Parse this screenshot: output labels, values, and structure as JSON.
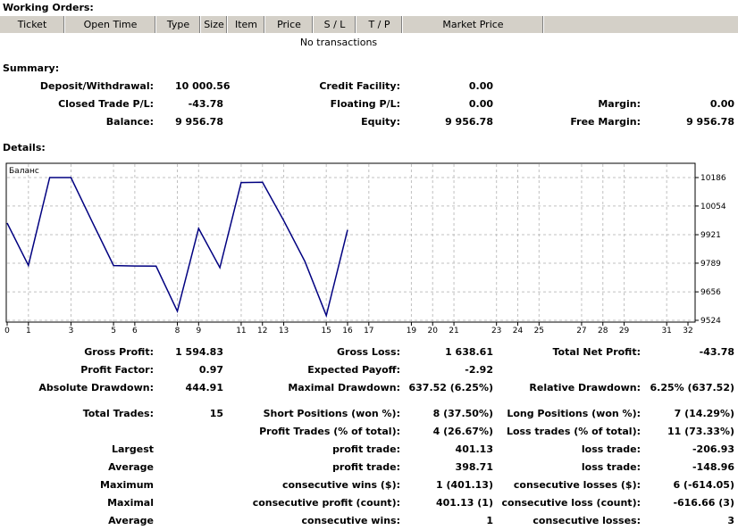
{
  "working_orders": {
    "title": "Working Orders:",
    "columns": [
      "Ticket",
      "Open Time",
      "Type",
      "Size",
      "Item",
      "Price",
      "S / L",
      "T / P",
      "Market Price"
    ],
    "empty_message": "No transactions"
  },
  "summary": {
    "title": "Summary:",
    "deposit_withdrawal_label": "Deposit/Withdrawal:",
    "deposit_withdrawal": "10 000.56",
    "credit_facility_label": "Credit Facility:",
    "credit_facility": "0.00",
    "closed_trade_pl_label": "Closed Trade P/L:",
    "closed_trade_pl": "-43.78",
    "floating_pl_label": "Floating P/L:",
    "floating_pl": "0.00",
    "margin_label": "Margin:",
    "margin": "0.00",
    "balance_label": "Balance:",
    "balance": "9 956.78",
    "equity_label": "Equity:",
    "equity": "9 956.78",
    "free_margin_label": "Free Margin:",
    "free_margin": "9 956.78"
  },
  "details": {
    "title": "Details:",
    "chart_data": {
      "type": "line",
      "title": "Баланс",
      "x": [
        0,
        1,
        2,
        3,
        4,
        5,
        6,
        7,
        8,
        9,
        10,
        11,
        12,
        13,
        14,
        15,
        16
      ],
      "series": [
        {
          "values": [
            9975,
            9779,
            10186,
            10186,
            9980,
            9778,
            9776,
            9775,
            9566,
            9950,
            9768,
            10163,
            10164,
            9986,
            9796,
            9546,
            9943
          ]
        }
      ],
      "xlim": [
        0,
        32
      ],
      "x_ticks": [
        0,
        1,
        3,
        5,
        6,
        8,
        9,
        11,
        12,
        13,
        15,
        16,
        17,
        19,
        20,
        21,
        23,
        24,
        25,
        27,
        28,
        29,
        31,
        32
      ],
      "ylim": [
        9524,
        10186
      ],
      "y_ticks": [
        10186,
        10054,
        9921,
        9789,
        9656,
        9524
      ],
      "grid": true,
      "line_color": "#000080"
    },
    "gross_profit_label": "Gross Profit:",
    "gross_profit": "1 594.83",
    "gross_loss_label": "Gross Loss:",
    "gross_loss": "1 638.61",
    "total_net_profit_label": "Total Net Profit:",
    "total_net_profit": "-43.78",
    "profit_factor_label": "Profit Factor:",
    "profit_factor": "0.97",
    "expected_payoff_label": "Expected Payoff:",
    "expected_payoff": "-2.92",
    "absolute_drawdown_label": "Absolute Drawdown:",
    "absolute_drawdown": "444.91",
    "maximal_drawdown_label": "Maximal Drawdown:",
    "maximal_drawdown": "637.52 (6.25%)",
    "relative_drawdown_label": "Relative Drawdown:",
    "relative_drawdown": "6.25% (637.52)",
    "total_trades_label": "Total Trades:",
    "total_trades": "15",
    "short_positions_label": "Short Positions (won %):",
    "short_positions": "8 (37.50%)",
    "long_positions_label": "Long Positions (won %):",
    "long_positions": "7 (14.29%)",
    "profit_trades_label": "Profit Trades (% of total):",
    "profit_trades": "4 (26.67%)",
    "loss_trades_label": "Loss trades (% of total):",
    "loss_trades": "11 (73.33%)",
    "largest_label": "Largest",
    "largest_profit_label": "profit trade:",
    "largest_profit": "401.13",
    "largest_loss_label": "loss trade:",
    "largest_loss": "-206.93",
    "average_label": "Average",
    "average_profit_label": "profit trade:",
    "average_profit": "398.71",
    "average_loss_label": "loss trade:",
    "average_loss": "-148.96",
    "maximum_label": "Maximum",
    "max_consec_wins_label": "consecutive wins ($):",
    "max_consec_wins": "1 (401.13)",
    "max_consec_losses_label": "consecutive losses ($):",
    "max_consec_losses": "6 (-614.05)",
    "maximal_label": "Maximal",
    "maximal_consec_profit_label": "consecutive profit (count):",
    "maximal_consec_profit": "401.13 (1)",
    "maximal_consec_loss_label": "consecutive loss (count):",
    "maximal_consec_loss": "-616.66 (3)",
    "average2_label": "Average",
    "avg_consec_wins_label": "consecutive wins:",
    "avg_consec_wins": "1",
    "avg_consec_losses_label": "consecutive losses:",
    "avg_consec_losses": "3"
  }
}
